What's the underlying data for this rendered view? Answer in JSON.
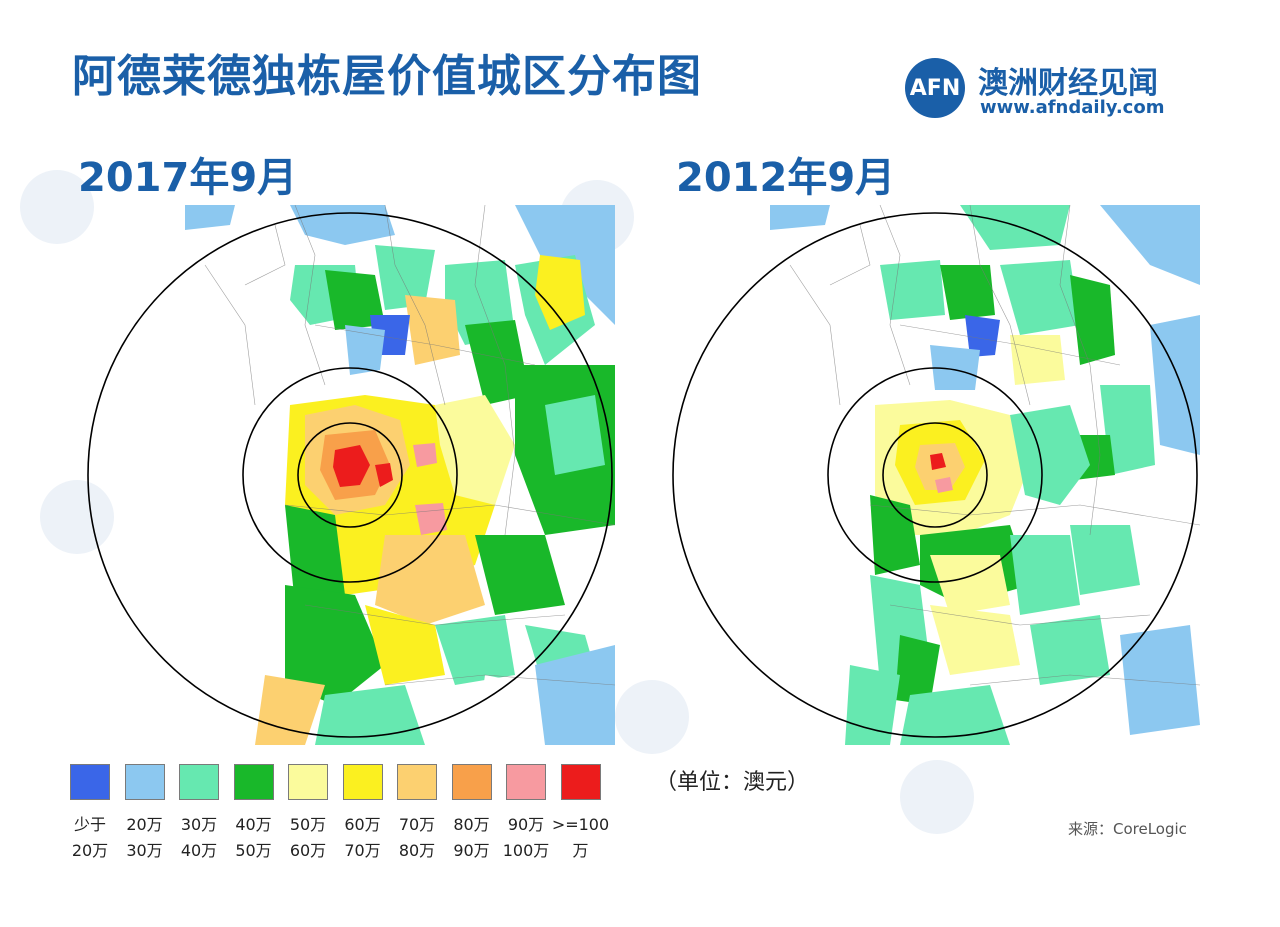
{
  "title": "阿德莱德独栋屋价值城区分布图",
  "brand": {
    "name": "澳洲财经见闻",
    "url": "www.afndaily.com",
    "logo_text": "AFN"
  },
  "maps": [
    {
      "date": "2017年9月"
    },
    {
      "date": "2012年9月"
    }
  ],
  "legend": [
    {
      "color": "#3a66e8",
      "line1": "少于",
      "line2": "20万"
    },
    {
      "color": "#8cc8f0",
      "line1": "20万",
      "line2": "30万"
    },
    {
      "color": "#66e8b0",
      "line1": "30万",
      "line2": "40万"
    },
    {
      "color": "#19b82a",
      "line1": "40万",
      "line2": "50万"
    },
    {
      "color": "#fbfb9c",
      "line1": "50万",
      "line2": "60万"
    },
    {
      "color": "#fbf020",
      "line1": "60万",
      "line2": "70万"
    },
    {
      "color": "#fcd070",
      "line1": "70万",
      "line2": "80万"
    },
    {
      "color": "#f8a04a",
      "line1": "80万",
      "line2": "90万"
    },
    {
      "color": "#f79aa0",
      "line1": "90万",
      "line2": "100万"
    },
    {
      "color": "#ec1c1c",
      "line1": ">=100万",
      "line2": ""
    }
  ],
  "unit": "（单位：澳元）",
  "source": "来源：CoreLogic"
}
